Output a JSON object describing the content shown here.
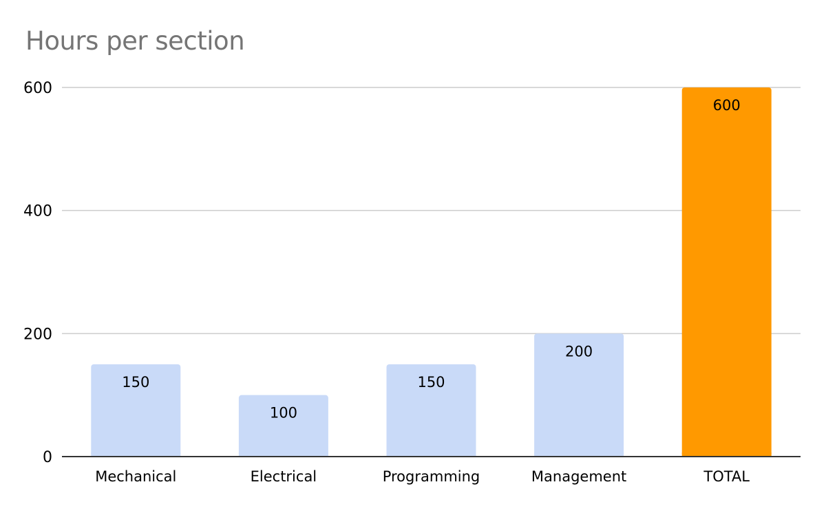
{
  "chart_data": {
    "type": "bar",
    "title": "Hours per section",
    "xlabel": "",
    "ylabel": "",
    "categories": [
      "Mechanical",
      "Electrical",
      "Programming",
      "Management",
      "TOTAL"
    ],
    "values": [
      150,
      100,
      150,
      200,
      600
    ],
    "data_labels": [
      "150",
      "100",
      "150",
      "200",
      "600"
    ],
    "bar_colors": [
      "#c9daf8",
      "#c9daf8",
      "#c9daf8",
      "#c9daf8",
      "#ff9900"
    ],
    "ylim": [
      0,
      600
    ],
    "yticks": [
      0,
      200,
      400,
      600
    ],
    "ytick_labels": [
      "0",
      "200",
      "400",
      "600"
    ],
    "grid": true,
    "legend": "none",
    "gridline_color": "#cccccc",
    "axis_color": "#333333"
  }
}
